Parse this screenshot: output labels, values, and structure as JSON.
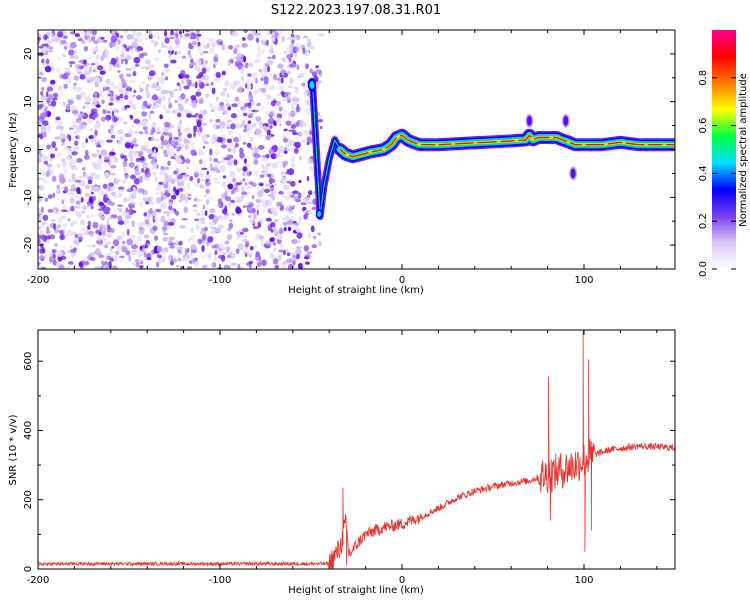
{
  "figure": {
    "title": "S122.2023.197.08.31.R01"
  },
  "chart_data": [
    {
      "type": "heatmap",
      "xlabel": "Height of straight line (km)",
      "ylabel": "Frequency (Hz)",
      "xlim": [
        -200,
        150
      ],
      "ylim": [
        -25,
        25
      ],
      "xticks": [
        -200,
        -100,
        0,
        100
      ],
      "yticks": [
        -20,
        -10,
        0,
        10,
        20
      ],
      "colorbar": {
        "label": "Normalized spectral amplitude",
        "range": [
          0,
          1
        ],
        "ticks": [
          "0.0",
          "0.2",
          "0.4",
          "0.6",
          "0.8"
        ],
        "colors": [
          "#ffffff",
          "#d8c6f5",
          "#7a3df0",
          "#0000ff",
          "#00e0ff",
          "#00ff40",
          "#ffff00",
          "#ff7a00",
          "#ff0000",
          "#ff0090"
        ]
      },
      "noise_region_x": [
        -200,
        -50
      ],
      "ridge": [
        {
          "x": -50,
          "y": 14
        },
        {
          "x": -49,
          "y": 13
        },
        {
          "x": -45,
          "y": -14
        },
        {
          "x": -43,
          "y": -8
        },
        {
          "x": -40,
          "y": -2
        },
        {
          "x": -37,
          "y": 2
        },
        {
          "x": -34,
          "y": 0
        },
        {
          "x": -31,
          "y": -1
        },
        {
          "x": -27,
          "y": -1.5
        },
        {
          "x": -22,
          "y": -1
        },
        {
          "x": -17,
          "y": -0.5
        },
        {
          "x": -10,
          "y": 0
        },
        {
          "x": -6,
          "y": 1
        },
        {
          "x": -3,
          "y": 2.5
        },
        {
          "x": 0,
          "y": 3
        },
        {
          "x": 3,
          "y": 2
        },
        {
          "x": 6,
          "y": 1.5
        },
        {
          "x": 10,
          "y": 1
        },
        {
          "x": 20,
          "y": 1
        },
        {
          "x": 30,
          "y": 1.2
        },
        {
          "x": 40,
          "y": 1.4
        },
        {
          "x": 50,
          "y": 1.6
        },
        {
          "x": 60,
          "y": 1.8
        },
        {
          "x": 68,
          "y": 2
        },
        {
          "x": 70,
          "y": 3
        },
        {
          "x": 72,
          "y": 2
        },
        {
          "x": 75,
          "y": 2.5
        },
        {
          "x": 80,
          "y": 2.5
        },
        {
          "x": 85,
          "y": 2.5
        },
        {
          "x": 88,
          "y": 2
        },
        {
          "x": 92,
          "y": 1.5
        },
        {
          "x": 95,
          "y": 1
        },
        {
          "x": 100,
          "y": 1
        },
        {
          "x": 110,
          "y": 1
        },
        {
          "x": 120,
          "y": 1.5
        },
        {
          "x": 130,
          "y": 1
        },
        {
          "x": 140,
          "y": 1
        },
        {
          "x": 150,
          "y": 1
        }
      ],
      "spots": [
        {
          "x": 70,
          "y": 6
        },
        {
          "x": 90,
          "y": 6
        },
        {
          "x": 94,
          "y": -5
        }
      ]
    },
    {
      "type": "line",
      "xlabel": "Height of straight line (km)",
      "ylabel": "SNR (10 * v/v)",
      "xlim": [
        -200,
        150
      ],
      "ylim": [
        0,
        690
      ],
      "xticks": [
        -200,
        -100,
        0,
        100
      ],
      "yticks": [
        0,
        200,
        400,
        600
      ],
      "color": "#e8302a",
      "anchors": [
        {
          "x": -200,
          "y": 15
        },
        {
          "x": -100,
          "y": 15
        },
        {
          "x": -40,
          "y": 15
        },
        {
          "x": -34,
          "y": 60
        },
        {
          "x": -31,
          "y": 130
        },
        {
          "x": -29,
          "y": 40
        },
        {
          "x": -25,
          "y": 70
        },
        {
          "x": -20,
          "y": 100
        },
        {
          "x": -10,
          "y": 120
        },
        {
          "x": 0,
          "y": 130
        },
        {
          "x": 10,
          "y": 150
        },
        {
          "x": 20,
          "y": 175
        },
        {
          "x": 30,
          "y": 205
        },
        {
          "x": 40,
          "y": 225
        },
        {
          "x": 50,
          "y": 238
        },
        {
          "x": 60,
          "y": 248
        },
        {
          "x": 70,
          "y": 255
        },
        {
          "x": 78,
          "y": 270
        },
        {
          "x": 85,
          "y": 280
        },
        {
          "x": 95,
          "y": 300
        },
        {
          "x": 105,
          "y": 330
        },
        {
          "x": 115,
          "y": 345
        },
        {
          "x": 130,
          "y": 355
        },
        {
          "x": 150,
          "y": 350
        }
      ],
      "spikes": [
        {
          "x": -32.5,
          "y": 235
        },
        {
          "x": -30.5,
          "y": 10
        },
        {
          "x": 80.5,
          "y": 555
        },
        {
          "x": 81.5,
          "y": 140
        },
        {
          "x": 99.5,
          "y": 690
        },
        {
          "x": 100.5,
          "y": 50
        },
        {
          "x": 102.5,
          "y": 605
        },
        {
          "x": 104,
          "y": 110
        }
      ]
    }
  ]
}
